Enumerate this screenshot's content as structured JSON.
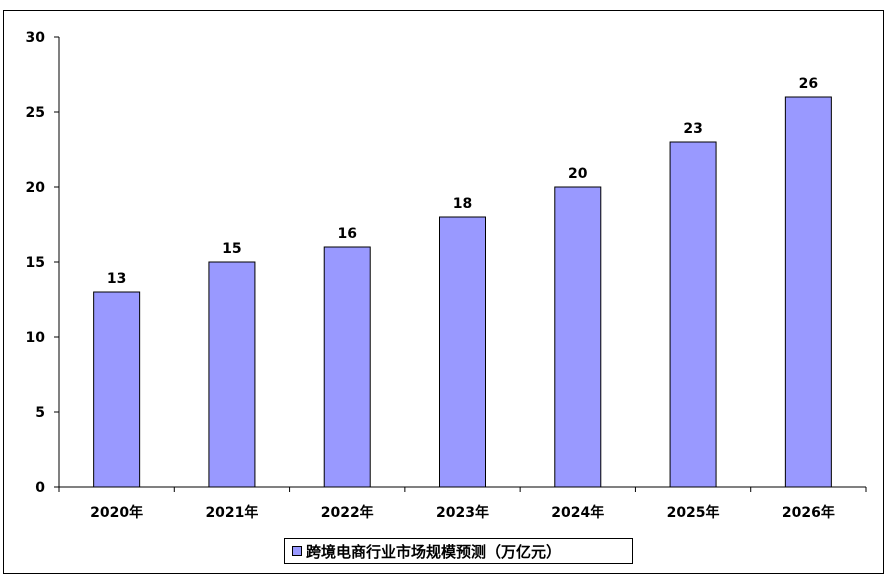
{
  "chart_data": {
    "type": "bar",
    "title": "",
    "xlabel": "",
    "ylabel": "",
    "categories": [
      "2020年",
      "2021年",
      "2022年",
      "2023年",
      "2024年",
      "2025年",
      "2026年"
    ],
    "series": [
      {
        "name": "跨境电商行业市场规模预测（万亿元）",
        "values": [
          13,
          15,
          16,
          18,
          20,
          23,
          26
        ],
        "color": "#9999ff"
      }
    ],
    "ylim": [
      0,
      30
    ],
    "yticks": [
      0,
      5,
      10,
      15,
      20,
      25,
      30
    ],
    "data_labels": true,
    "grid": false,
    "legend_position": "bottom"
  }
}
